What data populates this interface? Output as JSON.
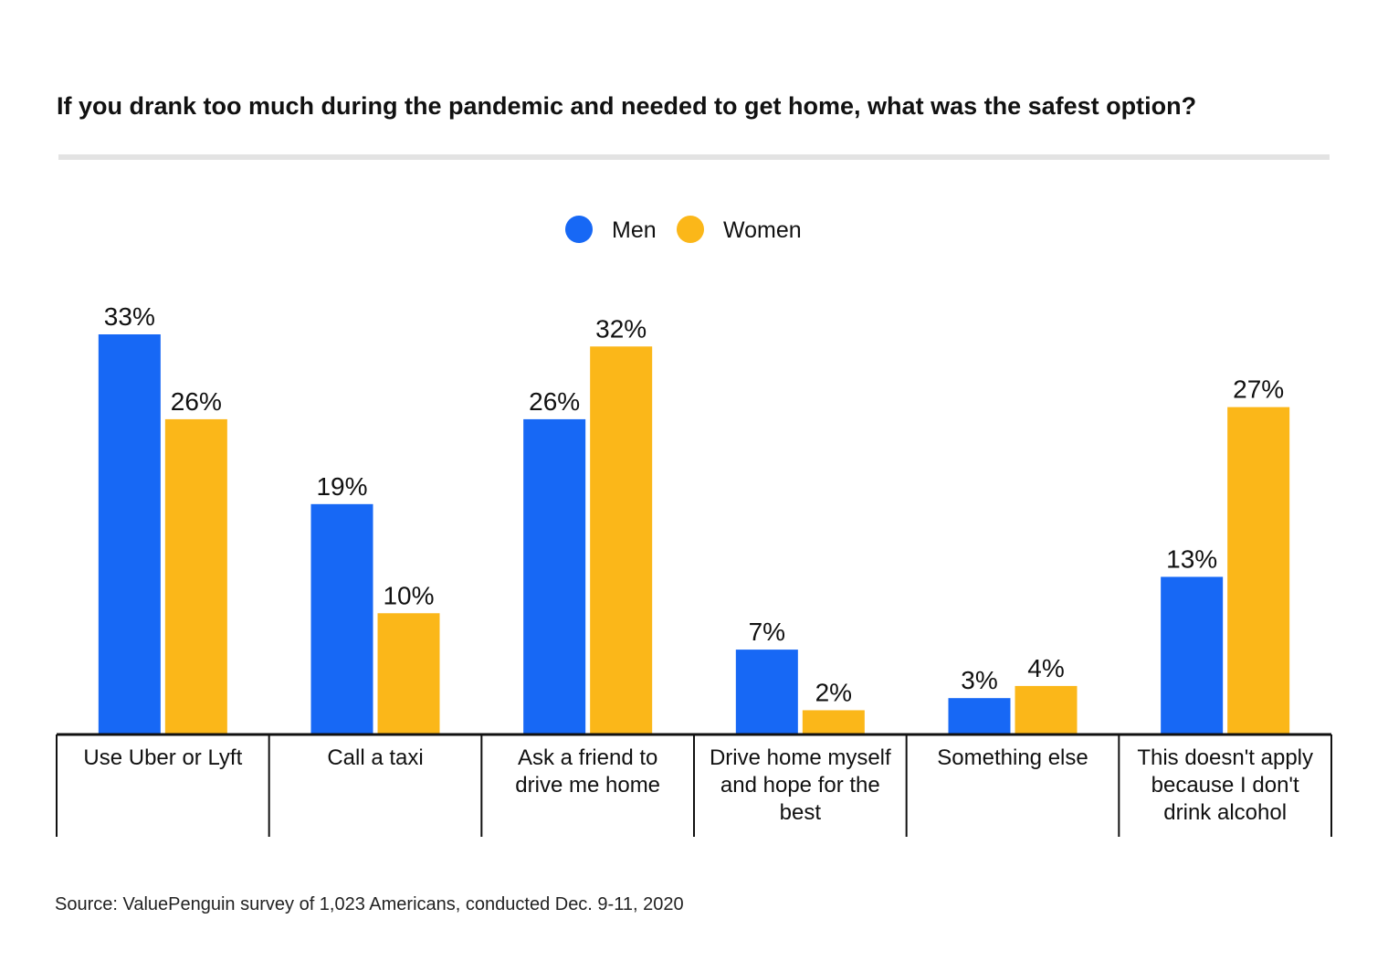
{
  "chart_data": {
    "type": "bar",
    "title": "If you drank too much during the pandemic and needed to get home, what was the safest option?",
    "categories": [
      [
        "Use Uber or Lyft"
      ],
      [
        "Call a taxi"
      ],
      [
        "Ask a friend to",
        "drive me home"
      ],
      [
        "Drive home myself",
        "and hope for the",
        "best"
      ],
      [
        "Something else"
      ],
      [
        "This doesn't apply",
        "because I don't",
        "drink alcohol"
      ]
    ],
    "series": [
      {
        "name": "Men",
        "color": "#1768f5",
        "values": [
          33,
          19,
          26,
          7,
          3,
          13
        ]
      },
      {
        "name": "Women",
        "color": "#fbb719",
        "values": [
          26,
          10,
          32,
          2,
          4,
          27
        ]
      }
    ],
    "value_suffix": "%",
    "ylim": [
      0,
      33
    ],
    "grid": false,
    "legend_position": "top-center",
    "source": "Source: ValuePenguin survey of 1,023 Americans, conducted Dec. 9-11, 2020"
  }
}
